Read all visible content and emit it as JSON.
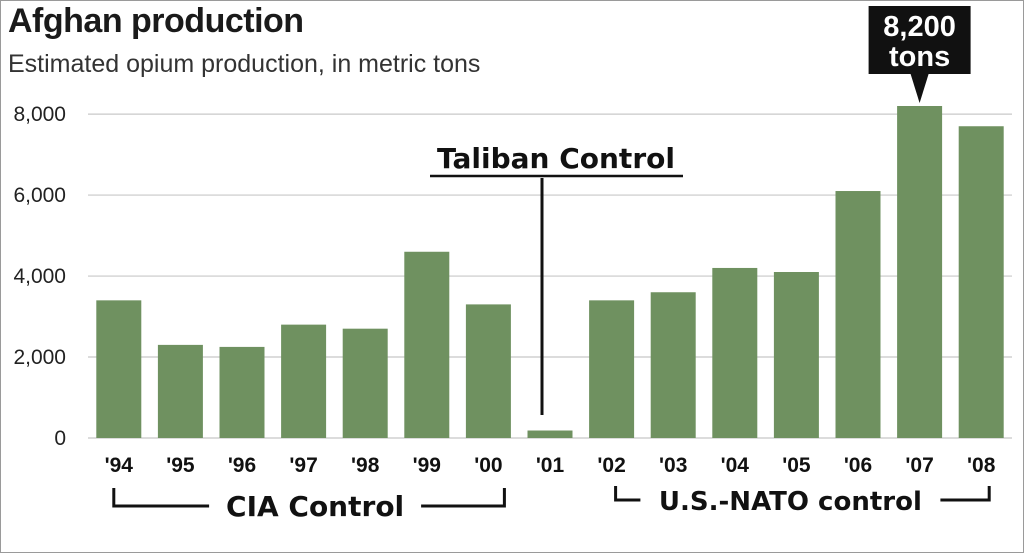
{
  "header": {
    "title": "Afghan production",
    "subtitle": "Estimated opium production, in metric tons"
  },
  "colors": {
    "bar": "#6f9160",
    "grid": "#c8c8c8",
    "callout_bg": "#111111",
    "bracket": "#111111"
  },
  "chart_data": {
    "type": "bar",
    "title": "Afghan production",
    "subtitle": "Estimated opium production, in metric tons",
    "xlabel": "",
    "ylabel": "",
    "categories": [
      "'94",
      "'95",
      "'96",
      "'97",
      "'98",
      "'99",
      "'00",
      "'01",
      "'02",
      "'03",
      "'04",
      "'05",
      "'06",
      "'07",
      "'08"
    ],
    "values": [
      3400,
      2300,
      2250,
      2800,
      2700,
      4600,
      3300,
      185,
      3400,
      3600,
      4200,
      4100,
      6100,
      8200,
      7700
    ],
    "ylim": [
      0,
      8200
    ],
    "yticks": [
      0,
      2000,
      4000,
      6000,
      8000
    ],
    "ytick_labels": [
      "0",
      "2,000",
      "4,000",
      "6,000",
      "8,000"
    ],
    "grid": true,
    "legend": "none",
    "annotations": {
      "peak_callout": {
        "category": "'07",
        "line1": "8,200",
        "line2": "tons"
      },
      "taliban": {
        "label": "Taliban Control",
        "category": "'01"
      },
      "cia": {
        "label": "CIA Control",
        "from": "'94",
        "to": "'00"
      },
      "nato": {
        "label": "U.S.-NATO control",
        "from": "'02",
        "to": "'08"
      }
    }
  }
}
